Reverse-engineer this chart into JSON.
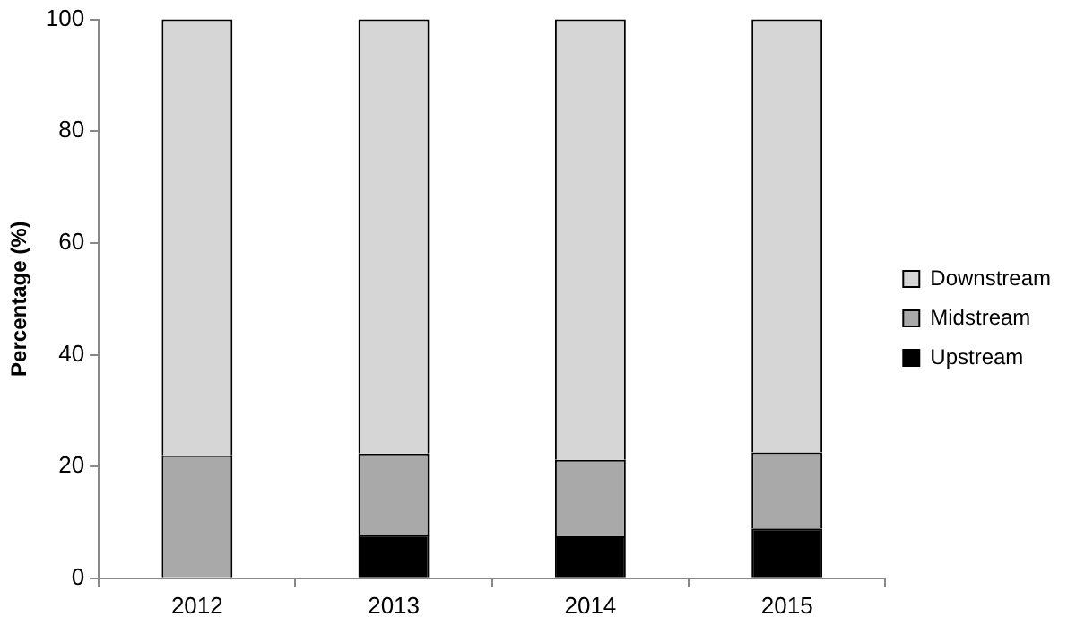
{
  "chart_data": {
    "type": "bar",
    "ylabel": "Percentage (%)",
    "categories": [
      "2012",
      "2013",
      "2014",
      "2015"
    ],
    "stacked": true,
    "legend": "right",
    "grid": false,
    "ylim": [
      0,
      100
    ],
    "yticks": [
      0,
      20,
      40,
      60,
      80,
      100
    ],
    "series": [
      {
        "name": "Upstream",
        "color": "#000000",
        "values": [
          0,
          7.8,
          7.5,
          8.9
        ]
      },
      {
        "name": "Midstream",
        "color": "#a9a9a9",
        "values": [
          22,
          14.5,
          13.7,
          13.6
        ]
      },
      {
        "name": "Downstream",
        "color": "#d6d6d6",
        "values": [
          78,
          77.7,
          78.8,
          77.5
        ]
      }
    ]
  }
}
